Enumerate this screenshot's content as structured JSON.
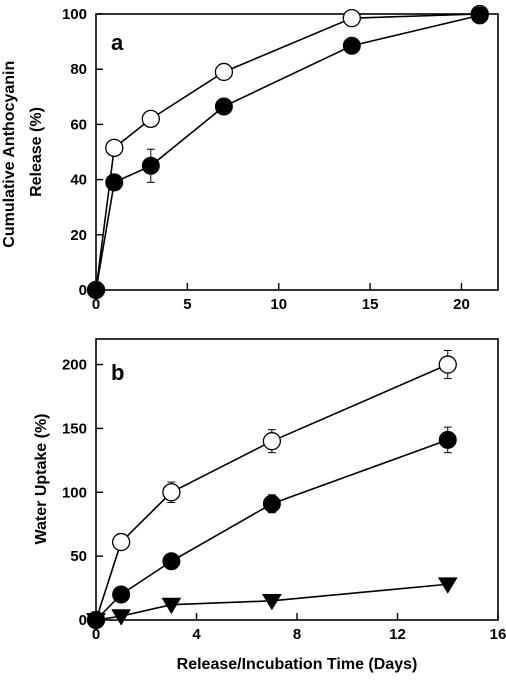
{
  "chart_data": [
    {
      "type": "line",
      "panel_label": "a",
      "ylabel_lines": [
        "Cumulative Anthocyanin",
        "Release (%)"
      ],
      "xlabel": "",
      "xlim": [
        0,
        22
      ],
      "ylim": [
        0,
        100
      ],
      "xticks": [
        0,
        5,
        10,
        15,
        20
      ],
      "yticks": [
        0,
        20,
        40,
        60,
        80,
        100
      ],
      "series": [
        {
          "marker": "open-circle",
          "points": [
            {
              "x": 0,
              "y": 0
            },
            {
              "x": 1,
              "y": 51.5
            },
            {
              "x": 3,
              "y": 62
            },
            {
              "x": 7,
              "y": 79
            },
            {
              "x": 14,
              "y": 98.5
            },
            {
              "x": 21,
              "y": 100
            }
          ]
        },
        {
          "marker": "filled-circle",
          "points": [
            {
              "x": 0,
              "y": 0
            },
            {
              "x": 1,
              "y": 39
            },
            {
              "x": 3,
              "y": 45,
              "err": 6
            },
            {
              "x": 7,
              "y": 66.5
            },
            {
              "x": 14,
              "y": 88.5
            },
            {
              "x": 21,
              "y": 99.5
            }
          ]
        }
      ]
    },
    {
      "type": "line",
      "panel_label": "b",
      "ylabel": "Water Uptake (%)",
      "xlabel": "Release/Incubation Time (Days)",
      "xlim": [
        0,
        16
      ],
      "ylim": [
        0,
        220
      ],
      "xticks": [
        0,
        4,
        8,
        12,
        16
      ],
      "yticks": [
        0,
        50,
        100,
        150,
        200
      ],
      "series": [
        {
          "marker": "open-circle",
          "points": [
            {
              "x": 0,
              "y": 0
            },
            {
              "x": 1,
              "y": 61
            },
            {
              "x": 3,
              "y": 100,
              "err": 8
            },
            {
              "x": 7,
              "y": 140,
              "err": 9
            },
            {
              "x": 14,
              "y": 200,
              "err": 11
            }
          ]
        },
        {
          "marker": "filled-circle",
          "points": [
            {
              "x": 0,
              "y": 0
            },
            {
              "x": 1,
              "y": 20
            },
            {
              "x": 3,
              "y": 46
            },
            {
              "x": 7,
              "y": 91,
              "err": 7
            },
            {
              "x": 14,
              "y": 141,
              "err": 10
            }
          ]
        },
        {
          "marker": "filled-triangle-down",
          "points": [
            {
              "x": 0,
              "y": 0
            },
            {
              "x": 1,
              "y": 3
            },
            {
              "x": 3,
              "y": 12
            },
            {
              "x": 7,
              "y": 15
            },
            {
              "x": 14,
              "y": 28
            }
          ]
        }
      ]
    }
  ]
}
